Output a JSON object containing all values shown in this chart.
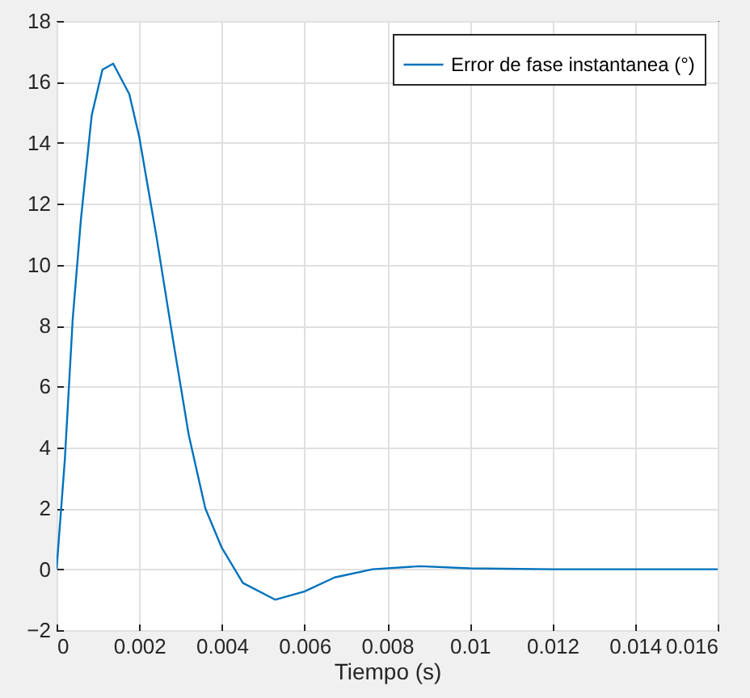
{
  "chart_data": {
    "type": "line",
    "xlabel": "Tiempo (s)",
    "x": [
      0,
      0.0002,
      0.00039,
      0.00059,
      0.00085,
      0.00111,
      0.00137,
      0.00176,
      0.002,
      0.00242,
      0.00281,
      0.0032,
      0.0036,
      0.004,
      0.00451,
      0.00529,
      0.006,
      0.00673,
      0.00765,
      0.0088,
      0.01,
      0.012,
      0.014,
      0.016
    ],
    "series": [
      {
        "name": "Error de fase instantanea (°)",
        "color": "#0072bd",
        "values": [
          0,
          3.6,
          8.2,
          11.5,
          14.9,
          16.4,
          16.6,
          15.6,
          14.2,
          10.9,
          7.6,
          4.4,
          2.0,
          0.7,
          -0.45,
          -1.0,
          -0.73,
          -0.27,
          0,
          0.1,
          0.03,
          0,
          0,
          0
        ]
      }
    ],
    "xlim": [
      0,
      0.016
    ],
    "xticks": [
      0,
      0.002,
      0.004,
      0.006,
      0.008,
      0.01,
      0.012,
      0.014,
      0.016
    ],
    "ylim": [
      -2,
      18
    ],
    "yticks": [
      -2,
      0,
      2,
      4,
      6,
      8,
      10,
      12,
      14,
      16,
      18
    ],
    "grid": true,
    "legend": "top right",
    "line_style": "solid"
  }
}
